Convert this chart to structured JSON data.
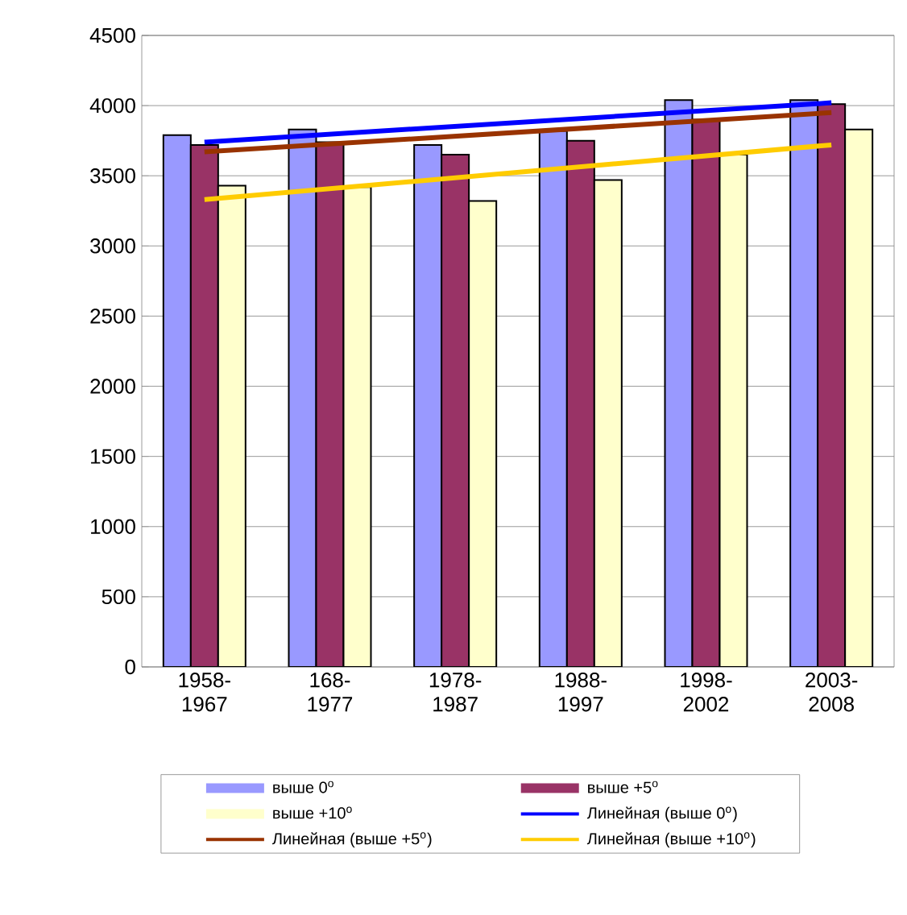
{
  "chart_data": {
    "type": "bar",
    "categories": [
      "1958-1967",
      "168-1977",
      "1978-1987",
      "1988-1997",
      "1998-2002",
      "2003-2008"
    ],
    "series": [
      {
        "name": "выше 0$^{o}$",
        "color": "#9999ff",
        "values": [
          3790,
          3830,
          3720,
          3820,
          4040,
          4040
        ]
      },
      {
        "name": "выше +5$^{o}$",
        "color": "#993366",
        "values": [
          3720,
          3740,
          3650,
          3750,
          3900,
          4010
        ]
      },
      {
        "name": "выше +10$^{o}$",
        "color": "#ffffcc",
        "values": [
          3430,
          3420,
          3320,
          3470,
          3650,
          3830
        ]
      },
      {
        "name": "Линейная (выше 0$^{o}$)",
        "type": "line",
        "color": "#0000ff",
        "x": [
          "1958-1967",
          "2003-2008"
        ],
        "values": [
          3740,
          4020
        ]
      },
      {
        "name": "Линейная (выше +5$^{o}$)",
        "type": "line",
        "color": "#993300",
        "x": [
          "1958-1967",
          "2003-2008"
        ],
        "values": [
          3670,
          3950
        ]
      },
      {
        "name": "Линейная (выше +10$^{o}$)",
        "type": "line",
        "color": "#ffcc00",
        "x": [
          "1958-1967",
          "2003-2008"
        ],
        "values": [
          3330,
          3720
        ]
      }
    ],
    "ylim": [
      0,
      4500
    ],
    "yticks": [
      0,
      500,
      1000,
      1500,
      2000,
      2500,
      3000,
      3500,
      4000,
      4500
    ],
    "grid": "y",
    "legend": "bottom"
  }
}
